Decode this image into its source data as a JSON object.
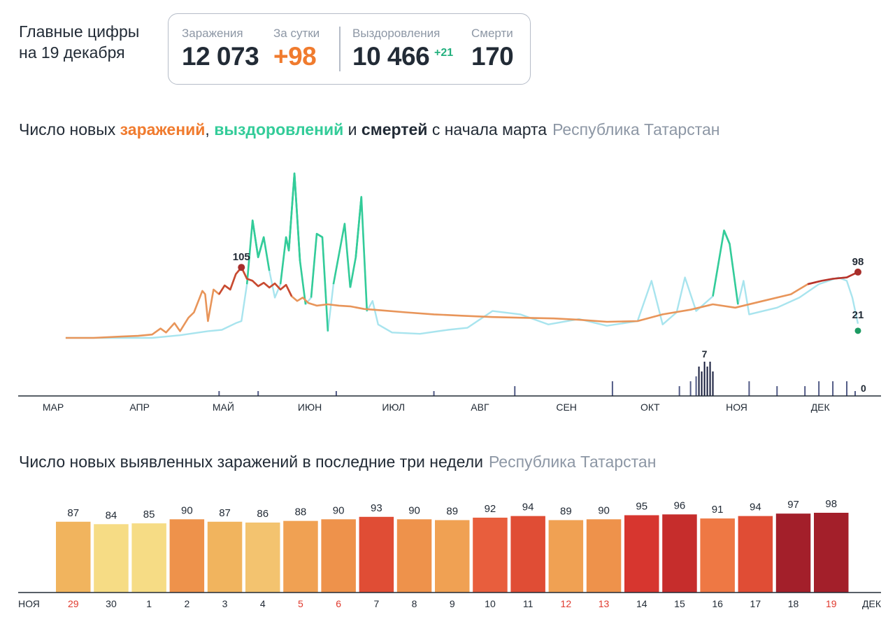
{
  "header": {
    "title_line1": "Главные цифры",
    "title_line2": "на 19 декабря"
  },
  "stats": {
    "infections_label": "Заражения",
    "infections_value": "12 073",
    "daily_label": "За сутки",
    "daily_value": "+98",
    "recoveries_label": "Выздоровления",
    "recoveries_value": "10 466",
    "recoveries_delta": "+21",
    "deaths_label": "Смерти",
    "deaths_value": "170"
  },
  "colors": {
    "infections": "#f07b2e",
    "recoveries": "#33cc99",
    "recoveries_light": "#a8e4ee",
    "deaths": "#2d3561",
    "text": "#222b36",
    "muted": "#8d97a5"
  },
  "chart1": {
    "title_prefix": "Число новых ",
    "title_infections": "заражений",
    "title_sep": ", ",
    "title_recoveries": "выздоровлений",
    "title_and": " и ",
    "title_deaths": "смертей",
    "title_suffix": " с начала марта",
    "region": "Республика Татарстан"
  },
  "chart2": {
    "title": "Число новых выявленных заражений в последние три недели",
    "region": "Республика Татарстан"
  },
  "chart_data": [
    {
      "type": "line",
      "x_axis": "date",
      "month_labels": [
        "МАР",
        "АПР",
        "МАЙ",
        "ИЮН",
        "ИЮЛ",
        "АВГ",
        "СЕН",
        "ОКТ",
        "НОЯ",
        "ДЕК"
      ],
      "annotations": [
        {
          "series": "infections",
          "label": "105"
        },
        {
          "series": "infections",
          "label": "98"
        },
        {
          "series": "recoveries",
          "label": "21"
        },
        {
          "series": "deaths",
          "label": "7"
        },
        {
          "series": "deaths",
          "label": "0"
        }
      ],
      "series": [
        {
          "key": "infections",
          "points": [
            [
              "2020-03-10",
              0
            ],
            [
              "2020-03-20",
              0
            ],
            [
              "2020-03-30",
              2
            ],
            [
              "2020-04-05",
              3
            ],
            [
              "2020-04-10",
              5
            ],
            [
              "2020-04-13",
              14
            ],
            [
              "2020-04-15",
              8
            ],
            [
              "2020-04-18",
              22
            ],
            [
              "2020-04-20",
              10
            ],
            [
              "2020-04-23",
              30
            ],
            [
              "2020-04-25",
              38
            ],
            [
              "2020-04-28",
              70
            ],
            [
              "2020-04-29",
              65
            ],
            [
              "2020-04-30",
              25
            ],
            [
              "2020-05-02",
              72
            ],
            [
              "2020-05-04",
              65
            ],
            [
              "2020-05-06",
              78
            ],
            [
              "2020-05-08",
              72
            ],
            [
              "2020-05-10",
              95
            ],
            [
              "2020-05-12",
              105
            ],
            [
              "2020-05-14",
              88
            ],
            [
              "2020-05-16",
              85
            ],
            [
              "2020-05-18",
              77
            ],
            [
              "2020-05-20",
              82
            ],
            [
              "2020-05-22",
              75
            ],
            [
              "2020-05-24",
              81
            ],
            [
              "2020-05-26",
              72
            ],
            [
              "2020-05-28",
              79
            ],
            [
              "2020-05-30",
              62
            ],
            [
              "2020-06-01",
              55
            ],
            [
              "2020-06-03",
              60
            ],
            [
              "2020-06-05",
              52
            ],
            [
              "2020-06-08",
              48
            ],
            [
              "2020-06-12",
              50
            ],
            [
              "2020-06-16",
              48
            ],
            [
              "2020-06-20",
              47
            ],
            [
              "2020-06-25",
              43
            ],
            [
              "2020-07-01",
              41
            ],
            [
              "2020-07-10",
              38
            ],
            [
              "2020-07-20",
              35
            ],
            [
              "2020-07-30",
              33
            ],
            [
              "2020-08-10",
              31
            ],
            [
              "2020-08-20",
              30
            ],
            [
              "2020-09-01",
              29
            ],
            [
              "2020-09-10",
              27
            ],
            [
              "2020-09-20",
              24
            ],
            [
              "2020-10-01",
              25
            ],
            [
              "2020-10-10",
              35
            ],
            [
              "2020-10-20",
              42
            ],
            [
              "2020-10-28",
              50
            ],
            [
              "2020-11-05",
              45
            ],
            [
              "2020-11-15",
              55
            ],
            [
              "2020-11-25",
              65
            ],
            [
              "2020-12-01",
              80
            ],
            [
              "2020-12-06",
              85
            ],
            [
              "2020-12-10",
              88
            ],
            [
              "2020-12-15",
              90
            ],
            [
              "2020-12-19",
              98
            ]
          ]
        },
        {
          "key": "recoveries",
          "points": [
            [
              "2020-03-10",
              0
            ],
            [
              "2020-04-10",
              0
            ],
            [
              "2020-04-20",
              4
            ],
            [
              "2020-04-30",
              10
            ],
            [
              "2020-05-05",
              12
            ],
            [
              "2020-05-10",
              22
            ],
            [
              "2020-05-12",
              25
            ],
            [
              "2020-05-14",
              80
            ],
            [
              "2020-05-16",
              175
            ],
            [
              "2020-05-18",
              120
            ],
            [
              "2020-05-20",
              150
            ],
            [
              "2020-05-22",
              100
            ],
            [
              "2020-05-24",
              60
            ],
            [
              "2020-05-26",
              80
            ],
            [
              "2020-05-28",
              150
            ],
            [
              "2020-05-29",
              130
            ],
            [
              "2020-05-31",
              245
            ],
            [
              "2020-06-02",
              115
            ],
            [
              "2020-06-04",
              50
            ],
            [
              "2020-06-06",
              60
            ],
            [
              "2020-06-08",
              155
            ],
            [
              "2020-06-10",
              150
            ],
            [
              "2020-06-12",
              10
            ],
            [
              "2020-06-14",
              80
            ],
            [
              "2020-06-18",
              170
            ],
            [
              "2020-06-20",
              75
            ],
            [
              "2020-06-22",
              120
            ],
            [
              "2020-06-24",
              210
            ],
            [
              "2020-06-26",
              40
            ],
            [
              "2020-06-28",
              55
            ],
            [
              "2020-06-30",
              20
            ],
            [
              "2020-07-05",
              8
            ],
            [
              "2020-07-15",
              6
            ],
            [
              "2020-07-25",
              12
            ],
            [
              "2020-08-01",
              15
            ],
            [
              "2020-08-10",
              40
            ],
            [
              "2020-08-20",
              35
            ],
            [
              "2020-08-30",
              20
            ],
            [
              "2020-09-10",
              28
            ],
            [
              "2020-09-20",
              18
            ],
            [
              "2020-10-01",
              25
            ],
            [
              "2020-10-06",
              85
            ],
            [
              "2020-10-10",
              20
            ],
            [
              "2020-10-15",
              38
            ],
            [
              "2020-10-18",
              90
            ],
            [
              "2020-10-22",
              40
            ],
            [
              "2020-10-28",
              62
            ],
            [
              "2020-11-01",
              160
            ],
            [
              "2020-11-03",
              140
            ],
            [
              "2020-11-06",
              50
            ],
            [
              "2020-11-08",
              85
            ],
            [
              "2020-11-10",
              35
            ],
            [
              "2020-11-20",
              45
            ],
            [
              "2020-11-28",
              60
            ],
            [
              "2020-12-05",
              80
            ],
            [
              "2020-12-12",
              90
            ],
            [
              "2020-12-15",
              85
            ],
            [
              "2020-12-17",
              60
            ],
            [
              "2020-12-19",
              21
            ]
          ]
        },
        {
          "key": "deaths",
          "points": [
            [
              "2020-05-04",
              1
            ],
            [
              "2020-05-18",
              1
            ],
            [
              "2020-06-15",
              1
            ],
            [
              "2020-07-20",
              1
            ],
            [
              "2020-08-18",
              2
            ],
            [
              "2020-09-22",
              3
            ],
            [
              "2020-10-16",
              2
            ],
            [
              "2020-10-20",
              3
            ],
            [
              "2020-10-22",
              4
            ],
            [
              "2020-10-23",
              6
            ],
            [
              "2020-10-24",
              5
            ],
            [
              "2020-10-25",
              7
            ],
            [
              "2020-10-26",
              6
            ],
            [
              "2020-10-27",
              7
            ],
            [
              "2020-10-28",
              5
            ],
            [
              "2020-11-10",
              3
            ],
            [
              "2020-11-20",
              2
            ],
            [
              "2020-11-30",
              2
            ],
            [
              "2020-12-05",
              3
            ],
            [
              "2020-12-10",
              3
            ],
            [
              "2020-12-15",
              3
            ],
            [
              "2020-12-18",
              1
            ],
            [
              "2020-12-19",
              0
            ]
          ]
        }
      ]
    },
    {
      "type": "bar",
      "start_label": "НОЯ",
      "end_label": "ДЕК",
      "categories": [
        "29",
        "30",
        "1",
        "2",
        "3",
        "4",
        "5",
        "6",
        "7",
        "8",
        "9",
        "10",
        "11",
        "12",
        "13",
        "14",
        "15",
        "16",
        "17",
        "18",
        "19"
      ],
      "weekend": [
        true,
        false,
        false,
        false,
        false,
        false,
        true,
        true,
        false,
        false,
        false,
        false,
        false,
        true,
        true,
        false,
        false,
        false,
        false,
        false,
        true
      ],
      "values": [
        87,
        84,
        85,
        90,
        87,
        86,
        88,
        90,
        93,
        90,
        89,
        92,
        94,
        89,
        90,
        95,
        96,
        91,
        94,
        97,
        98
      ],
      "bar_colors": [
        "#f1b45e",
        "#f6dc85",
        "#f6dc85",
        "#ee924b",
        "#f1b45e",
        "#f3c36f",
        "#f0a153",
        "#ee924b",
        "#e04d35",
        "#ee924b",
        "#f0a153",
        "#e85e3d",
        "#e04d35",
        "#f0a153",
        "#ee924b",
        "#d7362f",
        "#c62d2c",
        "#ee7844",
        "#e04d35",
        "#a31f2a",
        "#a31f2a"
      ]
    }
  ]
}
